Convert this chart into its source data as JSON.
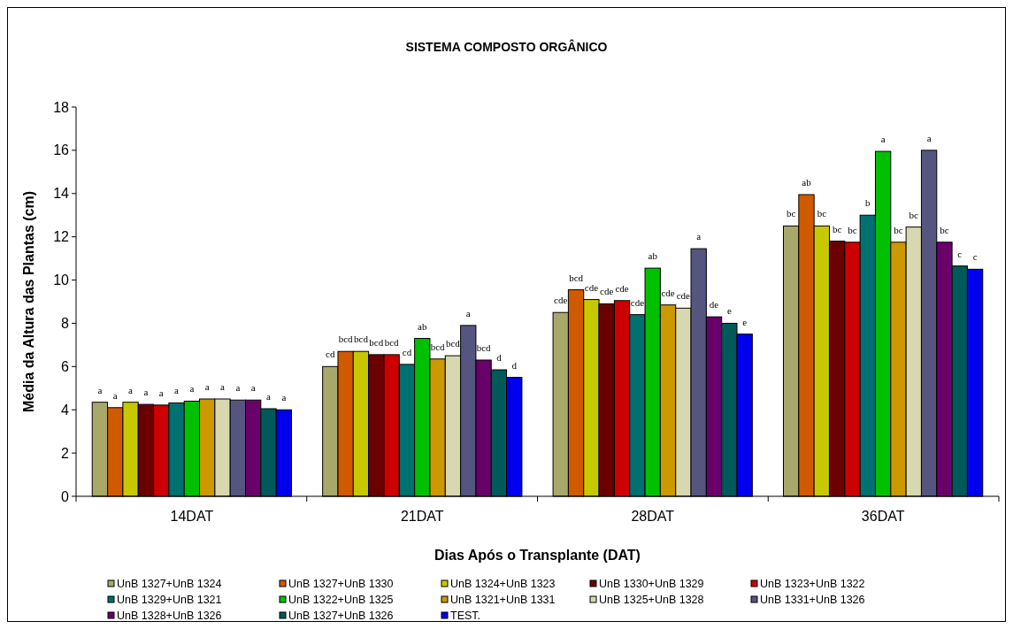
{
  "chart_data": {
    "type": "bar",
    "title": "SISTEMA COMPOSTO ORGÂNICO",
    "xlabel": "Dias Após o Transplante (DAT)",
    "ylabel": "Média da Altura das Plantas (cm)",
    "categories": [
      "14DAT",
      "21DAT",
      "28DAT",
      "36DAT"
    ],
    "ylim": [
      0,
      18
    ],
    "yticks": [
      0,
      2,
      4,
      6,
      8,
      10,
      12,
      14,
      16,
      18
    ],
    "grid": false,
    "legend": "bottom",
    "series": [
      {
        "name": "UnB 1327+UnB 1324",
        "color": "#a8a86a",
        "values": [
          4.35,
          6.0,
          8.5,
          12.5
        ],
        "value_labels": [
          "a",
          "cd",
          "cde",
          "bc"
        ]
      },
      {
        "name": "UnB 1327+UnB 1330",
        "color": "#d05a00",
        "values": [
          4.1,
          6.7,
          9.55,
          13.95
        ],
        "value_labels": [
          "a",
          "bcd",
          "bcd",
          "ab"
        ]
      },
      {
        "name": "UnB 1324+UnB 1323",
        "color": "#c8c800",
        "values": [
          4.35,
          6.7,
          9.1,
          12.5
        ],
        "value_labels": [
          "a",
          "bcd",
          "cde",
          "bc"
        ]
      },
      {
        "name": "UnB 1330+UnB 1329",
        "color": "#6a0000",
        "values": [
          4.25,
          6.55,
          8.9,
          11.8
        ],
        "value_labels": [
          "a",
          "bcd",
          "cde",
          "bc"
        ]
      },
      {
        "name": "UnB 1323+UnB 1322",
        "color": "#cc0000",
        "values": [
          4.22,
          6.55,
          9.05,
          11.75
        ],
        "value_labels": [
          "a",
          "bcd",
          "cde",
          "bc"
        ]
      },
      {
        "name": "UnB 1329+UnB 1321",
        "color": "#007070",
        "values": [
          4.32,
          6.1,
          8.4,
          13.0
        ],
        "value_labels": [
          "a",
          "cd",
          "cde",
          "b"
        ]
      },
      {
        "name": "UnB 1322+UnB 1325",
        "color": "#00c000",
        "values": [
          4.4,
          7.3,
          10.55,
          15.95
        ],
        "value_labels": [
          "a",
          "ab",
          "ab",
          "a"
        ]
      },
      {
        "name": "UnB 1321+UnB 1331",
        "color": "#cc9900",
        "values": [
          4.5,
          6.35,
          8.85,
          11.75
        ],
        "value_labels": [
          "a",
          "bcd",
          "cde",
          "bc"
        ]
      },
      {
        "name": "UnB 1325+UnB 1328",
        "color": "#d8d8b0",
        "values": [
          4.5,
          6.5,
          8.7,
          12.45
        ],
        "value_labels": [
          "a",
          "bcd",
          "cde",
          "bc"
        ]
      },
      {
        "name": "UnB 1331+UnB 1326",
        "color": "#555580",
        "values": [
          4.45,
          7.9,
          11.45,
          16.0
        ],
        "value_labels": [
          "a",
          "a",
          "a",
          "a"
        ]
      },
      {
        "name": "UnB 1328+UnB 1326",
        "color": "#6a006a",
        "values": [
          4.45,
          6.3,
          8.3,
          11.75
        ],
        "value_labels": [
          "a",
          "bcd",
          "de",
          "bc"
        ]
      },
      {
        "name": "UnB 1327+UnB 1326",
        "color": "#005a5a",
        "values": [
          4.05,
          5.85,
          8.0,
          10.65
        ],
        "value_labels": [
          "a",
          "d",
          "e",
          "c"
        ]
      },
      {
        "name": "TEST.",
        "color": "#0000ee",
        "values": [
          4.0,
          5.5,
          7.5,
          10.5
        ],
        "value_labels": [
          "a",
          "d",
          "e",
          "c"
        ]
      }
    ]
  }
}
